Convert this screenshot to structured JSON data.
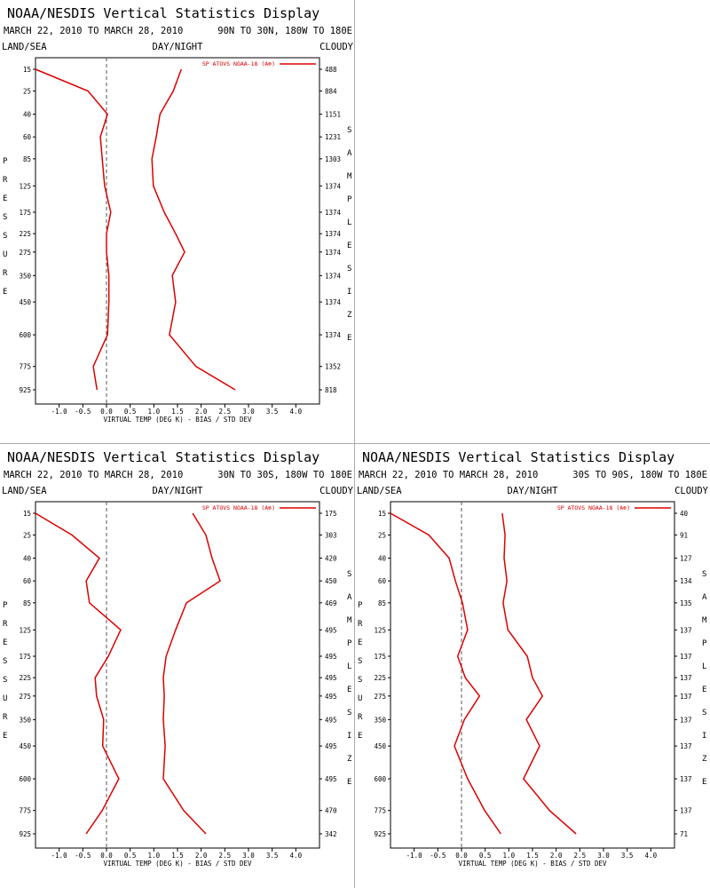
{
  "chart_data": [
    {
      "type": "line",
      "title": "NOAA/NESDIS Vertical Statistics Display",
      "subtitle": "MARCH 22, 2010 TO MARCH 28, 2010",
      "region": "90N TO 30N, 180W TO 180E",
      "land_sea": "LAND/SEA",
      "day_night": "DAY/NIGHT",
      "cloudy": "CLOUDY",
      "xlabel": "VIRTUAL TEMP (DEG K) - BIAS / STD DEV",
      "ylabel": "PRESSURE",
      "y2label": "SAMPLE SIZE",
      "categories": [
        15,
        25,
        40,
        60,
        85,
        125,
        175,
        225,
        275,
        350,
        450,
        600,
        775,
        925
      ],
      "sample_size": [
        488,
        884,
        1151,
        1231,
        1303,
        1374,
        1374,
        1374,
        1374,
        1374,
        1374,
        1374,
        1352,
        818
      ],
      "series": [
        {
          "name": "SP ATOVS NOAA-18 (A⊕)",
          "color": "#dd0000",
          "values": [
            -1.5,
            -0.39,
            0.02,
            -0.13,
            -0.09,
            -0.04,
            0.09,
            0.0,
            0.0,
            0.05,
            0.05,
            0.02,
            -0.28,
            -0.2
          ]
        },
        {
          "color": "#dd0000",
          "values": [
            1.58,
            1.41,
            1.13,
            1.05,
            0.96,
            0.99,
            1.22,
            1.46,
            1.65,
            1.39,
            1.46,
            1.33,
            1.89,
            2.72
          ]
        }
      ],
      "xlim": [
        -1.5,
        4.5
      ],
      "xticks": [
        {
          "value": -1,
          "label": "-1.0"
        },
        -0.5,
        {
          "value": 0,
          "label": "0.0"
        },
        0.5,
        {
          "value": 1,
          "label": "1.0"
        },
        1.5,
        {
          "value": 2,
          "label": "2.0"
        },
        2.5,
        {
          "value": 3,
          "label": "3.0"
        },
        3.5,
        {
          "value": 4,
          "label": "4.0"
        }
      ]
    },
    {
      "type": "line",
      "title": "NOAA/NESDIS Vertical Statistics Display",
      "subtitle": "MARCH 22, 2010 TO MARCH 28, 2010",
      "region": "30N TO 30S, 180W TO 180E",
      "land_sea": "LAND/SEA",
      "day_night": "DAY/NIGHT",
      "cloudy": "CLOUDY",
      "xlabel": "VIRTUAL TEMP (DEG K) - BIAS / STD DEV",
      "ylabel": "PRESSURE",
      "y2label": "SAMPLE SIZE",
      "categories": [
        15,
        25,
        40,
        60,
        85,
        125,
        175,
        225,
        275,
        350,
        450,
        600,
        775,
        925
      ],
      "sample_size": [
        175,
        303,
        420,
        450,
        469,
        495,
        495,
        495,
        495,
        495,
        495,
        495,
        470,
        342
      ],
      "series": [
        {
          "name": "SP ATOVS NOAA-18 (A⊕)",
          "color": "#dd0000",
          "values": [
            -1.5,
            -0.73,
            -0.15,
            -0.43,
            -0.36,
            0.3,
            0.04,
            -0.24,
            -0.21,
            -0.06,
            -0.08,
            0.26,
            -0.09,
            -0.43
          ]
        },
        {
          "color": "#dd0000",
          "values": [
            1.82,
            2.1,
            2.23,
            2.4,
            1.69,
            1.46,
            1.26,
            1.2,
            1.22,
            1.2,
            1.24,
            1.2,
            1.63,
            2.1
          ]
        }
      ],
      "xlim": [
        -1.5,
        4.5
      ],
      "xticks": [
        {
          "value": -1,
          "label": "-1.0"
        },
        -0.5,
        {
          "value": 0,
          "label": "0.0"
        },
        0.5,
        {
          "value": 1,
          "label": "1.0"
        },
        1.5,
        {
          "value": 2,
          "label": "2.0"
        },
        2.5,
        {
          "value": 3,
          "label": "3.0"
        },
        3.5,
        {
          "value": 4,
          "label": "4.0"
        }
      ]
    },
    {
      "type": "line",
      "title": "NOAA/NESDIS Vertical Statistics Display",
      "subtitle": "MARCH 22, 2010 TO MARCH 28, 2010",
      "region": "30S TO 90S, 180W TO 180E",
      "land_sea": "LAND/SEA",
      "day_night": "DAY/NIGHT",
      "cloudy": "CLOUDY",
      "xlabel": "VIRTUAL TEMP (DEG K) - BIAS / STD DEV",
      "ylabel": "PRESSURE",
      "y2label": "SAMPLE SIZE",
      "categories": [
        15,
        25,
        40,
        60,
        85,
        125,
        175,
        225,
        275,
        350,
        450,
        600,
        775,
        925
      ],
      "sample_size": [
        40,
        91,
        127,
        134,
        135,
        137,
        137,
        137,
        137,
        137,
        137,
        137,
        137,
        71
      ],
      "series": [
        {
          "name": "SP ATOVS NOAA-18 (A⊕)",
          "color": "#dd0000",
          "values": [
            -1.5,
            -0.69,
            -0.26,
            -0.13,
            0.02,
            0.13,
            -0.08,
            0.08,
            0.38,
            0.06,
            -0.15,
            0.13,
            0.49,
            0.83
          ]
        },
        {
          "color": "#dd0000",
          "values": [
            0.86,
            0.92,
            0.9,
            0.96,
            0.88,
            0.98,
            1.39,
            1.5,
            1.71,
            1.37,
            1.65,
            1.31,
            1.86,
            2.42
          ]
        }
      ],
      "xlim": [
        -1.5,
        4.5
      ],
      "xticks": [
        {
          "value": -1,
          "label": "-1.0"
        },
        -0.5,
        {
          "value": 0,
          "label": "0.0"
        },
        0.5,
        {
          "value": 1,
          "label": "1.0"
        },
        1.5,
        {
          "value": 2,
          "label": "2.0"
        },
        2.5,
        {
          "value": 3,
          "label": "3.0"
        },
        3.5,
        {
          "value": 4,
          "label": "4.0"
        }
      ]
    }
  ]
}
